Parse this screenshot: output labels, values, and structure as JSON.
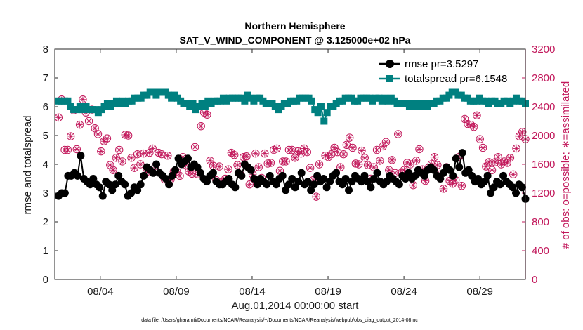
{
  "chart_data": {
    "type": "line",
    "title": [
      "Northern Hemisphere",
      "SAT_V_WIND_COMPONENT @ 3.125000e+02 hPa"
    ],
    "xlabel": "Aug.01,2014 00:00:00 start",
    "ylabel": "rmse and totalspread",
    "ylabel_right": "# of obs: o=possible; ∗=assimilated",
    "footnote": "data file: /Users/gharamti/Documents/NCAR/Reanalysis/~/Documents/NCAR/Reanalysis/webpub/obs_diag_output_2014-08.nc",
    "xlim": [
      0,
      31
    ],
    "ylim": [
      0,
      8
    ],
    "ylim_right": [
      0,
      3200
    ],
    "yticks": [
      "0",
      "1",
      "2",
      "3",
      "4",
      "5",
      "6",
      "7",
      "8"
    ],
    "yticks_right": [
      "0",
      "400",
      "800",
      "1200",
      "1600",
      "2000",
      "2400",
      "2800",
      "3200"
    ],
    "xticks": [
      {
        "value": 3,
        "label": "08/04"
      },
      {
        "value": 8,
        "label": "08/09"
      },
      {
        "value": 13,
        "label": "08/14"
      },
      {
        "value": 18,
        "label": "08/19"
      },
      {
        "value": 23,
        "label": "08/24"
      },
      {
        "value": 28,
        "label": "08/29"
      }
    ],
    "legend_location": "top-right",
    "series": [
      {
        "name": "rmse",
        "legend": "rmse pr=3.5297",
        "axis": "left",
        "color": "#000000",
        "marker": "circle",
        "values": [
          2.9,
          3.0,
          3.0,
          3.6,
          3.6,
          3.7,
          3.6,
          4.3,
          3.5,
          3.4,
          3.3,
          3.5,
          3.3,
          3.2,
          2.9,
          3.4,
          3.3,
          3.1,
          3.3,
          3.6,
          3.4,
          3.3,
          2.9,
          3.0,
          3.2,
          3.1,
          3.3,
          3.6,
          3.9,
          3.8,
          3.7,
          4.0,
          3.7,
          3.6,
          3.5,
          3.3,
          3.6,
          3.8,
          4.2,
          4.0,
          4.1,
          4.2,
          3.9,
          4.0,
          3.9,
          3.7,
          3.5,
          3.4,
          3.6,
          3.7,
          3.4,
          3.3,
          3.3,
          3.4,
          3.5,
          3.3,
          3.2,
          3.7,
          3.6,
          4.0,
          3.9,
          3.8,
          3.5,
          3.3,
          3.5,
          3.4,
          3.3,
          3.6,
          3.4,
          3.3,
          3.5,
          3.6,
          3.1,
          3.3,
          3.5,
          3.2,
          3.4,
          3.7,
          3.3,
          3.4,
          3.1,
          3.3,
          3.6,
          3.4,
          3.5,
          3.2,
          3.4,
          3.6,
          3.7,
          3.4,
          3.3,
          3.5,
          3.1,
          3.4,
          3.6,
          3.5,
          3.4,
          3.6,
          3.4,
          3.2,
          3.5,
          3.7,
          3.4,
          3.3,
          3.4,
          3.6,
          3.5,
          3.4,
          3.3,
          3.6,
          3.5,
          3.7,
          3.5,
          3.6,
          3.8,
          3.7,
          3.6,
          3.8,
          3.9,
          3.8,
          3.6,
          3.5,
          3.7,
          3.9,
          3.8,
          3.6,
          4.2,
          3.9,
          4.4,
          3.7,
          3.8,
          3.6,
          3.4,
          3.5,
          3.3,
          3.4,
          3.6,
          3.0,
          3.2,
          3.4,
          3.3,
          3.6,
          3.4,
          3.3,
          3.2,
          3.0,
          3.3,
          3.2,
          2.8
        ]
      },
      {
        "name": "totalspread",
        "legend": "totalspread pr=6.1548",
        "axis": "left",
        "color": "#008080",
        "marker": "square",
        "values": [
          6.2,
          6.2,
          6.2,
          6.2,
          6.0,
          5.9,
          5.9,
          6.0,
          5.9,
          6.0,
          5.9,
          5.9,
          5.9,
          5.8,
          5.9,
          6.0,
          6.1,
          6.0,
          6.1,
          6.2,
          6.1,
          6.2,
          6.1,
          6.2,
          6.2,
          6.3,
          6.3,
          6.3,
          6.4,
          6.4,
          6.5,
          6.5,
          6.4,
          6.5,
          6.5,
          6.5,
          6.4,
          6.3,
          6.4,
          6.3,
          6.2,
          6.1,
          6.1,
          6.0,
          6.1,
          5.9,
          6.0,
          6.1,
          6.0,
          6.2,
          6.1,
          6.2,
          6.2,
          6.2,
          6.3,
          6.2,
          6.3,
          6.3,
          6.3,
          6.3,
          6.3,
          6.2,
          6.4,
          6.3,
          6.2,
          6.3,
          6.3,
          6.2,
          6.1,
          6.1,
          6.1,
          6.0,
          5.9,
          6.0,
          6.1,
          6.1,
          6.2,
          6.2,
          6.2,
          6.3,
          6.3,
          6.3,
          6.3,
          6.2,
          5.9,
          5.8,
          6.0,
          5.5,
          5.8,
          6.0,
          6.0,
          6.1,
          6.2,
          6.2,
          6.3,
          6.3,
          6.3,
          6.2,
          6.2,
          6.3,
          6.3,
          6.3,
          6.3,
          6.2,
          6.3,
          6.3,
          6.2,
          6.3,
          6.2,
          6.3,
          6.2,
          6.1,
          6.1,
          6.1,
          6.1,
          6.0,
          6.1,
          6.0,
          6.1,
          6.0,
          6.1,
          6.0,
          6.1,
          6.1,
          6.2,
          6.2,
          6.3,
          6.3,
          6.4,
          6.5,
          6.5,
          6.4,
          6.4,
          6.3,
          6.3,
          6.2,
          6.2,
          6.2,
          6.3,
          6.2,
          6.2,
          6.1,
          6.2,
          6.2,
          6.1,
          6.1,
          6.2,
          6.2,
          6.1,
          6.2,
          6.3,
          6.2,
          6.2,
          6.1
        ]
      },
      {
        "name": "obs_possible",
        "axis": "right",
        "color": "#c2185b",
        "marker": "circle-asterisk",
        "values": [
          2250,
          2500,
          1800,
          1800,
          1990,
          2350,
          1810,
          2150,
          2500,
          2320,
          2200,
          2360,
          2100,
          2020,
          1780,
          1920,
          1960,
          1590,
          1520,
          1690,
          1800,
          1640,
          2010,
          2000,
          1690,
          1550,
          1740,
          1600,
          1750,
          1490,
          1760,
          1820,
          1580,
          1760,
          1740,
          1390,
          1720,
          1390,
          1500,
          1500,
          1440,
          1700,
          1590,
          1500,
          1470,
          1840,
          1460,
          2130,
          2320,
          2290,
          1650,
          1580,
          1380,
          1570,
          1360,
          1400,
          1530,
          1760,
          1730,
          1590,
          1460,
          1700,
          1710,
          1320,
          1460,
          1750,
          1560,
          1410,
          1750,
          1610,
          1620,
          1800,
          1820,
          1510,
          1640,
          1640,
          1800,
          1800,
          1690,
          1780,
          1750,
          1820,
          1770,
          1550,
          1380,
          1150,
          1600,
          1390,
          1720,
          1700,
          1740,
          1830,
          1770,
          1560,
          1740,
          1870,
          1970,
          1830,
          1610,
          1600,
          1790,
          1690,
          1590,
          1400,
          1560,
          1800,
          1650,
          1850,
          1910,
          1520,
          1660,
          1480,
          2020,
          1480,
          1520,
          1620,
          1600,
          1310,
          1650,
          1810,
          1530,
          1370,
          1550,
          1600,
          1700,
          1590,
          1460,
          1260,
          1560,
          1370,
          1330,
          1380,
          1700,
          1300,
          2230,
          2160,
          2150,
          2120,
          2280,
          1950,
          1830,
          1570,
          1630,
          1520,
          1630,
          1700,
          1600,
          1640,
          1620,
          1690,
          1460,
          1820,
          1990,
          2050,
          1950
        ]
      },
      {
        "name": "obs_assimilated",
        "axis": "right",
        "color": "#c2185b",
        "marker": "asterisk",
        "values": [
          2250,
          2500,
          1800,
          1800,
          1990,
          2350,
          1810,
          2150,
          2500,
          2320,
          2200,
          2360,
          2100,
          2020,
          1780,
          1920,
          1960,
          1590,
          1520,
          1690,
          1800,
          1640,
          2010,
          2000,
          1690,
          1550,
          1740,
          1600,
          1750,
          1490,
          1760,
          1820,
          1580,
          1760,
          1740,
          1390,
          1720,
          1390,
          1500,
          1500,
          1440,
          1700,
          1590,
          1500,
          1470,
          1840,
          1460,
          2130,
          2320,
          2290,
          1650,
          1580,
          1380,
          1570,
          1360,
          1400,
          1530,
          1760,
          1730,
          1590,
          1460,
          1700,
          1710,
          1320,
          1460,
          1750,
          1560,
          1410,
          1750,
          1610,
          1620,
          1800,
          1820,
          1510,
          1640,
          1640,
          1800,
          1800,
          1690,
          1780,
          1750,
          1820,
          1770,
          1550,
          1380,
          1150,
          1600,
          1390,
          1720,
          1700,
          1740,
          1830,
          1770,
          1560,
          1740,
          1870,
          1970,
          1830,
          1610,
          1600,
          1790,
          1690,
          1590,
          1400,
          1560,
          1800,
          1650,
          1850,
          1910,
          1520,
          1660,
          1480,
          2020,
          1480,
          1520,
          1620,
          1600,
          1310,
          1650,
          1810,
          1530,
          1370,
          1550,
          1600,
          1700,
          1590,
          1460,
          1260,
          1560,
          1370,
          1330,
          1380,
          1700,
          1300,
          2230,
          2160,
          2150,
          2120,
          2280,
          1950,
          1830,
          1570,
          1630,
          1520,
          1630,
          1700,
          1600,
          1640,
          1620,
          1690,
          1460,
          1820,
          1990,
          2050,
          1950
        ]
      }
    ]
  }
}
